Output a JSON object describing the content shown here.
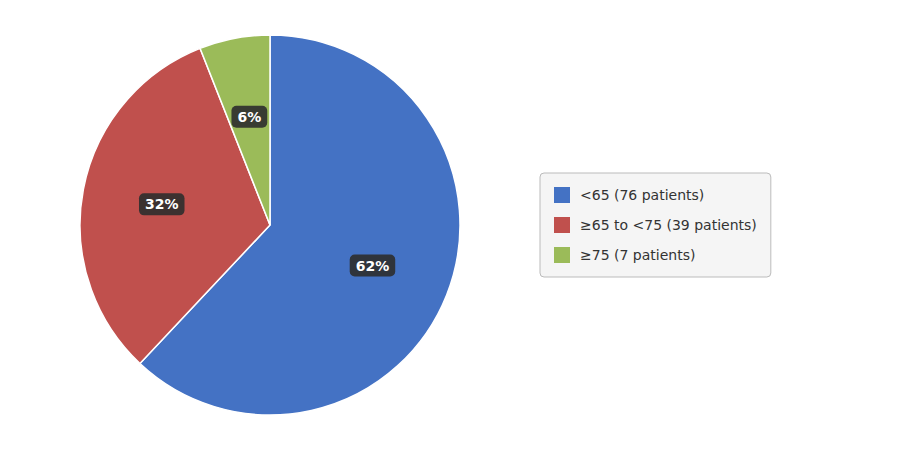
{
  "chart_data": {
    "type": "pie",
    "categories": [
      "<65 (76 patients)",
      "≥65 to <75 (39 patients)",
      "≥75 (7 patients)"
    ],
    "values": [
      62,
      32,
      6
    ],
    "value_labels": [
      "62%",
      "32%",
      "6%"
    ],
    "colors": [
      "#4472C4",
      "#C0504D",
      "#9BBB59"
    ],
    "data_labels": true,
    "legend": "right"
  }
}
